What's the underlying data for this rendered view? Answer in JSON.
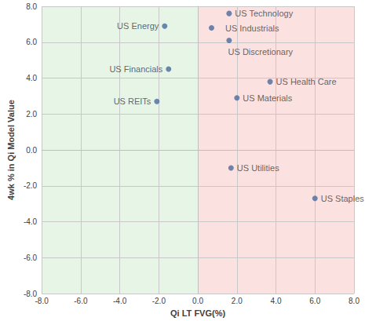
{
  "chart_data": {
    "type": "scatter",
    "x_label": "Qi LT FVG(%)",
    "y_label": "4wk % in Qi Model Value",
    "labels": [
      "US Technology",
      "US Industrials",
      "US Discretionary",
      "US Energy",
      "US Financials",
      "US REITs",
      "US Health Care",
      "US Materials",
      "US Utilities",
      "US Staples"
    ],
    "x": [
      1.6,
      0.7,
      1.6,
      -1.7,
      -1.5,
      -2.1,
      3.7,
      2.0,
      1.7,
      6.0
    ],
    "values": [
      7.6,
      6.8,
      6.1,
      6.9,
      4.5,
      2.7,
      3.8,
      2.9,
      -1.0,
      -2.7
    ],
    "color": "#4a6a9c",
    "marker": "circle",
    "xlim": [
      -8,
      8
    ],
    "ylim": [
      -8,
      8
    ],
    "xticks": [
      {
        "value": -8,
        "label": "-8.0"
      },
      {
        "value": -6,
        "label": "-6.0"
      },
      {
        "value": -4,
        "label": "-4.0"
      },
      {
        "value": -2,
        "label": "-2.0"
      },
      {
        "value": 0,
        "label": "0.0"
      },
      {
        "value": 2,
        "label": "2.0"
      },
      {
        "value": 4,
        "label": "4.0"
      },
      {
        "value": 6,
        "label": "6.0"
      },
      {
        "value": 8,
        "label": "8.0"
      }
    ],
    "yticks": [
      {
        "value": -8,
        "label": "-8.0"
      },
      {
        "value": -6,
        "label": "-6.0"
      },
      {
        "value": -4,
        "label": "-4.0"
      },
      {
        "value": -2,
        "label": "-2.0"
      },
      {
        "value": 0,
        "label": "0.0"
      },
      {
        "value": 2,
        "label": "2.0"
      },
      {
        "value": 4,
        "label": "4.0"
      },
      {
        "value": 6,
        "label": "6.0"
      },
      {
        "value": 8,
        "label": "8.0"
      }
    ],
    "shaded_regions": [
      {
        "xlim": [
          -8,
          0
        ],
        "color": "#e3f3e3"
      },
      {
        "xlim": [
          0,
          8
        ],
        "color": "#fbdcdc"
      }
    ],
    "grid": true,
    "data_labels": true
  }
}
